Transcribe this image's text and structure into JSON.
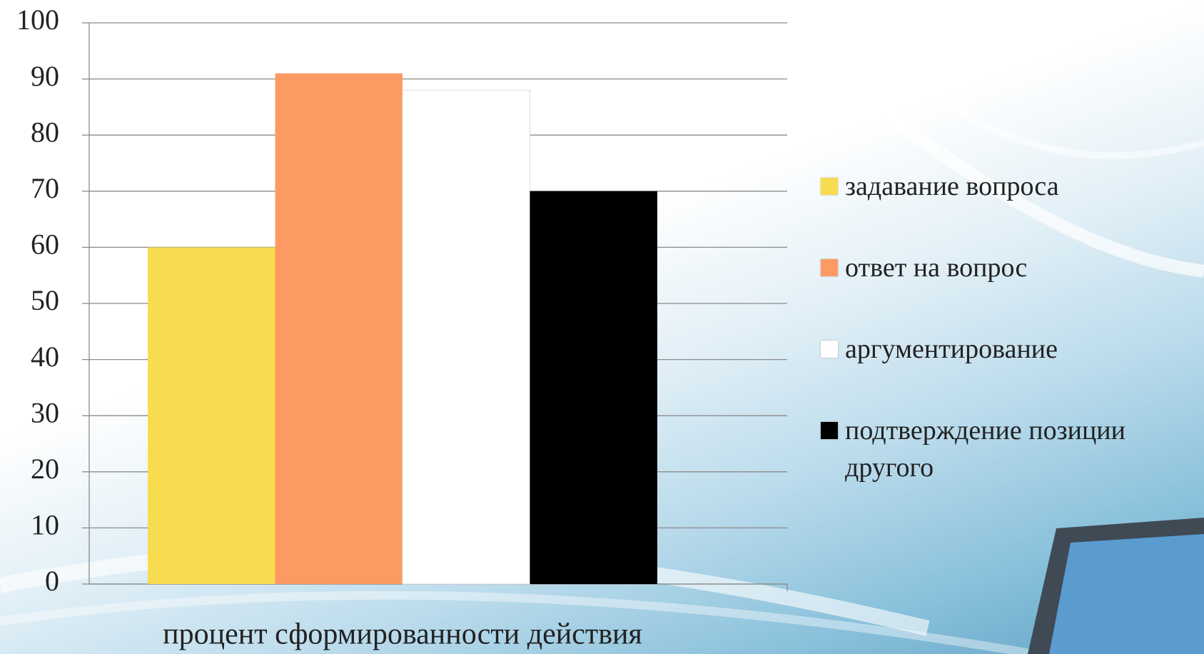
{
  "chart_data": {
    "type": "bar",
    "categories": [
      "процент сформированности действия"
    ],
    "series": [
      {
        "name": "задавание вопроса",
        "color": "#f7dc50",
        "values": [
          60
        ]
      },
      {
        "name": "ответ на вопрос",
        "color": "#fd9a64",
        "values": [
          91
        ]
      },
      {
        "name": "аргументирование",
        "color": "#ffffff",
        "values": [
          88
        ]
      },
      {
        "name": "подтверждение позиции другого",
        "color": "#000000",
        "values": [
          70
        ]
      }
    ],
    "ylim": [
      0,
      100
    ],
    "yticks": [
      0,
      10,
      20,
      30,
      40,
      50,
      60,
      70,
      80,
      90,
      100
    ],
    "grid": true,
    "legend": "right"
  }
}
